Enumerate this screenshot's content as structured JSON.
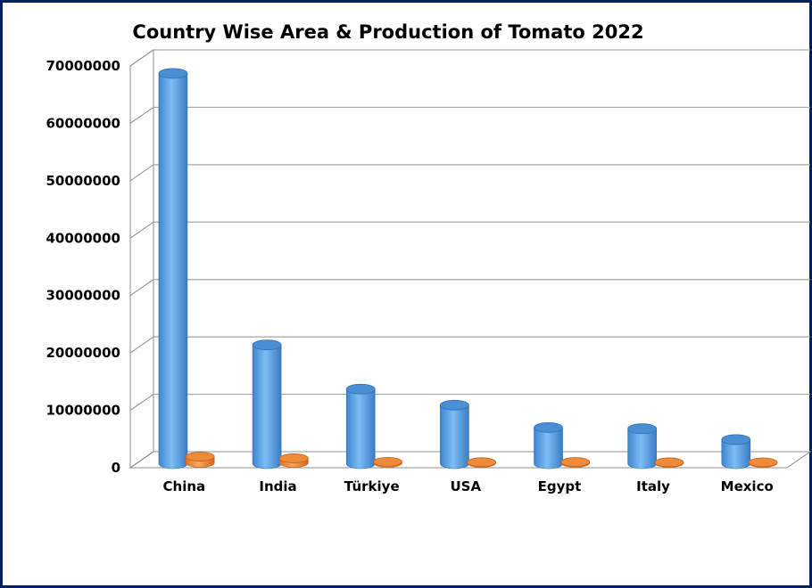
{
  "chart_data": {
    "type": "bar",
    "title": "Country Wise Area & Production of Tomato 2022",
    "xlabel": "",
    "ylabel": "",
    "categories": [
      "China",
      "India",
      "Türkiye",
      "USA",
      "Egypt",
      "Italy",
      "Mexico"
    ],
    "series": [
      {
        "values": [
          68000000,
          20700000,
          13000000,
          10200000,
          6300000,
          6100000,
          4200000
        ],
        "color": "#5b9bd5"
      },
      {
        "values": [
          1100000,
          800000,
          190000,
          120000,
          170000,
          100000,
          90000
        ],
        "color": "#ed7d31"
      }
    ],
    "ylim": [
      0,
      70000000
    ],
    "yticks": [
      "0",
      "10000000",
      "20000000",
      "30000000",
      "40000000",
      "50000000",
      "60000000",
      "70000000"
    ],
    "style": "3d-cylinder",
    "grid": true,
    "legend": "none"
  },
  "colors": {
    "border": "#002060",
    "gridline": "#a6a6a6",
    "series1_light": "#74b6f2",
    "series1_dark": "#3a82cc",
    "series2_light": "#f7a65a",
    "series2_dark": "#d66a1e"
  }
}
